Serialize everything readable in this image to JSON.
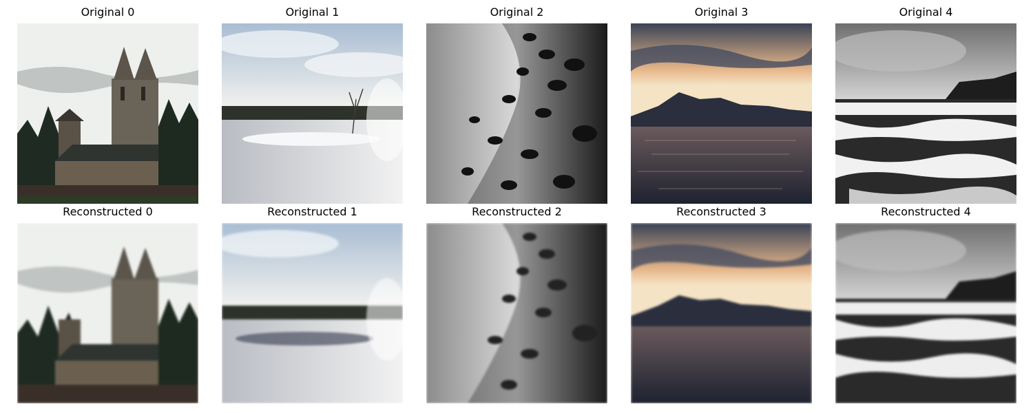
{
  "originals": [
    {
      "title": "Original 0",
      "scene": "stone-church"
    },
    {
      "title": "Original 1",
      "scene": "frozen-lake"
    },
    {
      "title": "Original 2",
      "scene": "leaves-silhouette"
    },
    {
      "title": "Original 3",
      "scene": "sunset-mountain-lake"
    },
    {
      "title": "Original 4",
      "scene": "waterfall-bw"
    }
  ],
  "reconstructed": [
    {
      "title": "Reconstructed 0",
      "scene": "stone-church"
    },
    {
      "title": "Reconstructed 1",
      "scene": "frozen-lake"
    },
    {
      "title": "Reconstructed 2",
      "scene": "leaves-silhouette"
    },
    {
      "title": "Reconstructed 3",
      "scene": "sunset-mountain-lake"
    },
    {
      "title": "Reconstructed 4",
      "scene": "waterfall-bw"
    }
  ]
}
